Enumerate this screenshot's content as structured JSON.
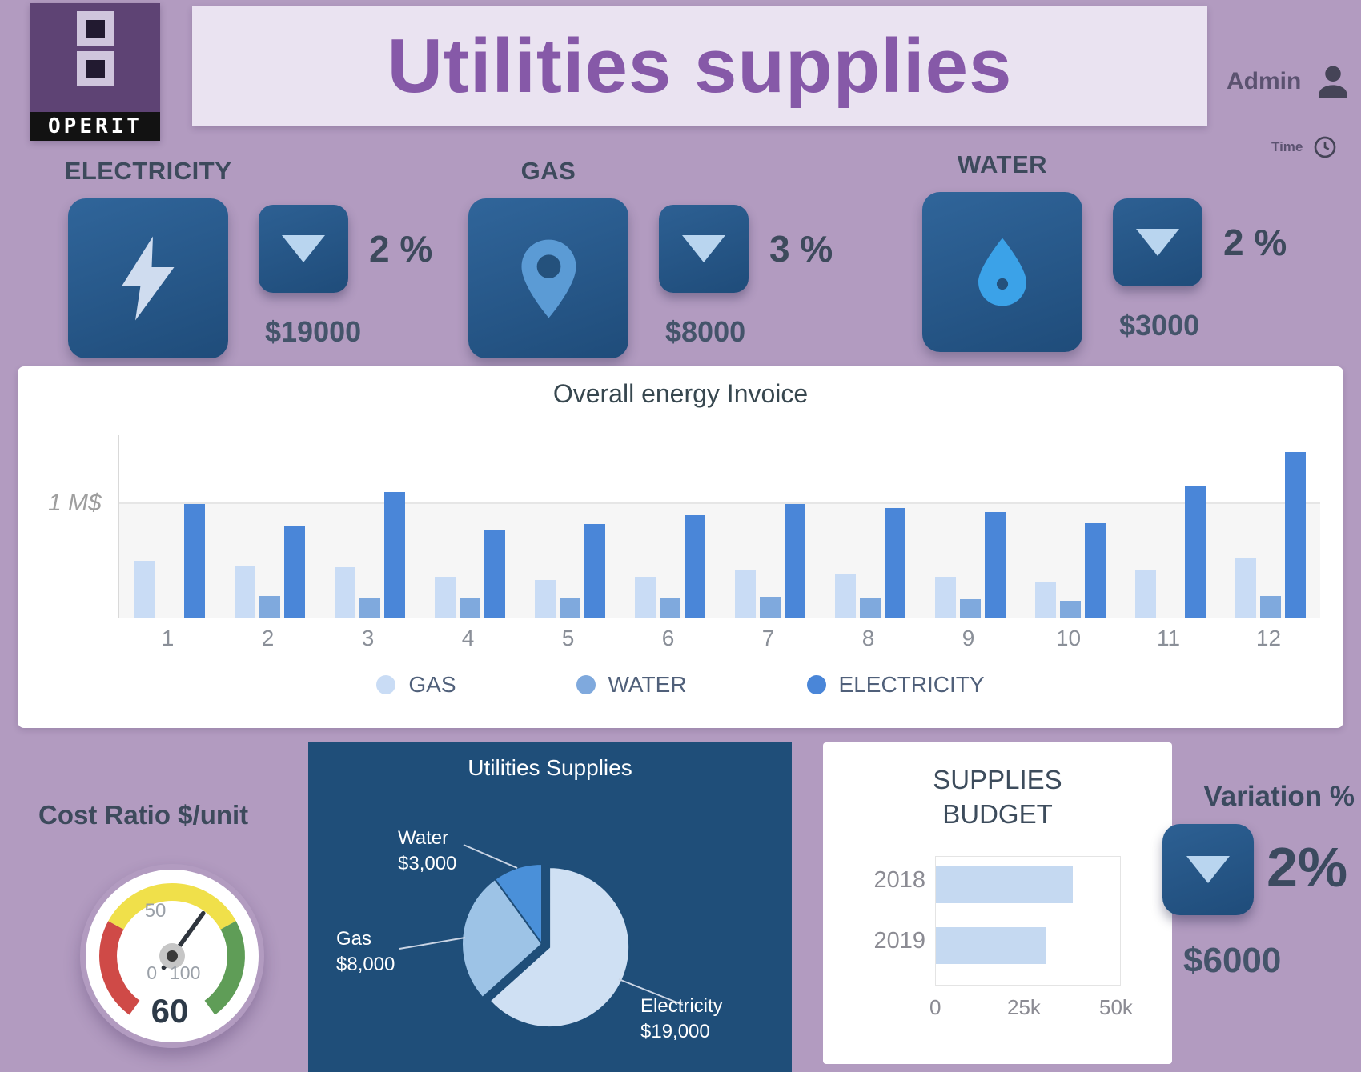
{
  "app": {
    "logo_text": "OPERIT",
    "title": "Utilities supplies",
    "admin_label": "Admin",
    "time_label": "Time"
  },
  "kpis": [
    {
      "id": "electricity",
      "label": "ELECTRICITY",
      "icon": "lightning-icon",
      "trend_icon": "arrow-down-icon",
      "percent": "2 %",
      "amount": "$19000"
    },
    {
      "id": "gas",
      "label": "GAS",
      "icon": "location-pin-icon",
      "trend_icon": "arrow-down-icon",
      "percent": "3 %",
      "amount": "$8000"
    },
    {
      "id": "water",
      "label": "WATER",
      "icon": "water-drop-icon",
      "trend_icon": "arrow-down-icon",
      "percent": "2 %",
      "amount": "$3000"
    }
  ],
  "variation": {
    "label": "Variation %",
    "trend_icon": "arrow-down-icon",
    "percent": "2%",
    "amount": "$6000"
  },
  "colors": {
    "background": "#b29bc0",
    "banner_bg": "#eae3f1",
    "banner_text": "#8659a8",
    "tile_blue": "#2d6093",
    "tile_blue_dark": "#1f4c7a",
    "panel_dark": "#1f4e79",
    "text_dark": "#3d4a5c",
    "amount_text": "#44546a"
  },
  "chart_data": [
    {
      "type": "bar",
      "title": "Overall energy Invoice",
      "categories": [
        "1",
        "2",
        "3",
        "4",
        "5",
        "6",
        "7",
        "8",
        "9",
        "10",
        "11",
        "12"
      ],
      "unit": "M$",
      "ylim": [
        0,
        1.6
      ],
      "y_gridline": {
        "value": 1,
        "label": "1 M$"
      },
      "legend_position": "bottom",
      "series": [
        {
          "name": "GAS",
          "color": "#c9dcf5",
          "values": [
            0.5,
            0.46,
            0.44,
            0.36,
            0.33,
            0.36,
            0.42,
            0.38,
            0.36,
            0.31,
            0.42,
            0.53
          ]
        },
        {
          "name": "WATER",
          "color": "#7fa9dd",
          "values": [
            0,
            0.19,
            0.17,
            0.17,
            0.17,
            0.17,
            0.18,
            0.17,
            0.16,
            0.15,
            0,
            0.19
          ]
        },
        {
          "name": "ELECTRICITY",
          "color": "#4a86d8",
          "values": [
            1.0,
            0.8,
            1.1,
            0.77,
            0.82,
            0.9,
            1.0,
            0.96,
            0.93,
            0.83,
            1.15,
            1.45
          ]
        }
      ]
    },
    {
      "type": "gauge",
      "title": "Cost Ratio $/unit",
      "value": 60,
      "value_display": "60",
      "min": 0,
      "max": 100,
      "ticks": [
        "0",
        "50",
        "100"
      ],
      "segments": [
        {
          "from": 10,
          "to": 33,
          "color": "#cf4a47"
        },
        {
          "from": 33,
          "to": 67,
          "color": "#f0e04a"
        },
        {
          "from": 67,
          "to": 90,
          "color": "#5f9d57"
        }
      ]
    },
    {
      "type": "pie",
      "title": "Utilities Supplies",
      "slices": [
        {
          "label": "Electricity",
          "amount": "$19,000",
          "value": 19000,
          "color": "#cfe0f3",
          "explode": true
        },
        {
          "label": "Gas",
          "amount": "$8,000",
          "value": 8000,
          "color": "#9dc3e6",
          "explode": false
        },
        {
          "label": "Water",
          "amount": "$3,000",
          "value": 3000,
          "color": "#4a90d9",
          "explode": false
        }
      ]
    },
    {
      "type": "bar",
      "orientation": "horizontal",
      "title": "SUPPLIES BUDGET",
      "categories": [
        "2018",
        "2019"
      ],
      "values": [
        37500,
        30000
      ],
      "xlim": [
        0,
        50000
      ],
      "xticks": [
        "0",
        "25k",
        "50k"
      ],
      "bar_color": "#c5d9f1"
    }
  ]
}
